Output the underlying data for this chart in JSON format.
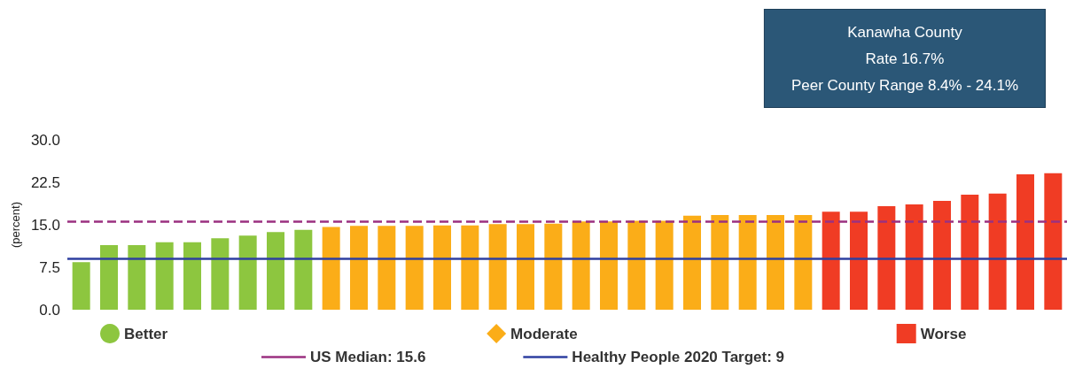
{
  "chart_data": {
    "type": "bar",
    "ylabel": "(percent)",
    "stacked": true,
    "categories": [
      null,
      null,
      null,
      null,
      null,
      null,
      null,
      null,
      null,
      null,
      null,
      null,
      null,
      null,
      null,
      null,
      null,
      null,
      null,
      null,
      null,
      null,
      null,
      null,
      null,
      null,
      null,
      null,
      null,
      null,
      null,
      null,
      null,
      null,
      null,
      null
    ],
    "series": [
      {
        "name": "Better",
        "color": "#8dc63f",
        "marker": "circle",
        "values": [
          8.4,
          11.4,
          11.4,
          11.9,
          11.9,
          12.6,
          13.1,
          13.7,
          14.1,
          null,
          null,
          null,
          null,
          null,
          null,
          null,
          null,
          null,
          null,
          null,
          null,
          null,
          null,
          null,
          null,
          null,
          null,
          null,
          null,
          null,
          null,
          null,
          null,
          null,
          null,
          null
        ]
      },
      {
        "name": "Moderate",
        "color": "#fbad18",
        "marker": "diamond",
        "values": [
          null,
          null,
          null,
          null,
          null,
          null,
          null,
          null,
          null,
          14.6,
          14.8,
          14.8,
          14.8,
          14.9,
          14.9,
          15.1,
          15.1,
          15.2,
          15.6,
          15.6,
          15.7,
          15.7,
          16.6,
          16.7,
          16.7,
          16.7,
          16.7,
          null,
          null,
          null,
          null,
          null,
          null,
          null,
          null,
          null
        ]
      },
      {
        "name": "Worse",
        "color": "#f03c24",
        "marker": "square",
        "values": [
          null,
          null,
          null,
          null,
          null,
          null,
          null,
          null,
          null,
          null,
          null,
          null,
          null,
          null,
          null,
          null,
          null,
          null,
          null,
          null,
          null,
          null,
          null,
          null,
          null,
          null,
          null,
          17.3,
          17.3,
          18.3,
          18.6,
          19.2,
          20.3,
          20.5,
          23.9,
          24.1
        ]
      }
    ],
    "ylim": [
      0,
      30
    ],
    "yticks": [
      {
        "value": 0,
        "label": "0.0"
      },
      7.5,
      {
        "value": 15,
        "label": "15.0"
      },
      22.5,
      {
        "value": 30,
        "label": "30.0"
      }
    ],
    "ref_lines": [
      {
        "axis": "y",
        "value": 15.6,
        "label": "US Median: 15.6",
        "color": "#9b3080",
        "line_style": "dashed"
      },
      {
        "axis": "y",
        "value": 9,
        "label": "Healthy People 2020 Target: 9",
        "color": "#2e3fa0",
        "line_style": "solid"
      }
    ],
    "annotations": [
      "Kanawha County\nRate 16.7%\nPeer County Range 8.4% - 24.1%"
    ],
    "grid": false,
    "legend": "bottom"
  }
}
